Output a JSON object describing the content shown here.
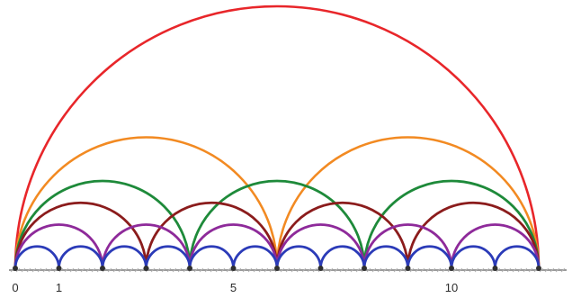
{
  "axis": {
    "min": 0,
    "max": 12,
    "labels": [
      {
        "value": 0,
        "text": "0"
      },
      {
        "value": 1,
        "text": "1"
      },
      {
        "value": 5,
        "text": "5"
      },
      {
        "value": 10,
        "text": "10"
      }
    ]
  },
  "arc_families": [
    {
      "name": "step-12",
      "color": "#e8262a",
      "step": 12
    },
    {
      "name": "step-6",
      "color": "#f28a22",
      "step": 6
    },
    {
      "name": "step-4",
      "color": "#1e8a3a",
      "step": 4
    },
    {
      "name": "step-3",
      "color": "#8b1c1c",
      "step": 3
    },
    {
      "name": "step-2",
      "color": "#8e2a9a",
      "step": 2
    },
    {
      "name": "step-1",
      "color": "#2b3bb8",
      "step": 1
    }
  ]
}
